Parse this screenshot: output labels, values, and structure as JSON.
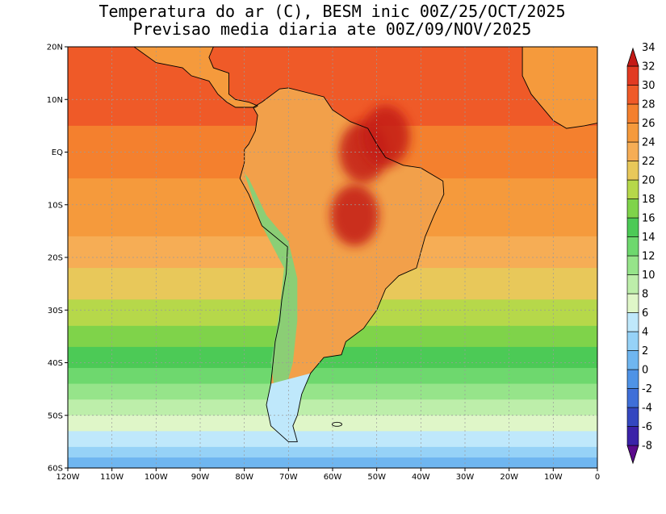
{
  "title": {
    "line1": "Temperatura do ar (C), BESM inic 00Z/25/OCT/2025",
    "line2": "Previsao media diaria ate 00Z/09/NOV/2025"
  },
  "map": {
    "projection": "lat-lon",
    "lon_range": [
      -120,
      0
    ],
    "lat_range": [
      -60,
      20
    ],
    "grid": true,
    "lat_ticks": [
      {
        "value": 20,
        "label": "20N"
      },
      {
        "value": 10,
        "label": "10N"
      },
      {
        "value": 0,
        "label": "EQ"
      },
      {
        "value": -10,
        "label": "10S"
      },
      {
        "value": -20,
        "label": "20S"
      },
      {
        "value": -30,
        "label": "30S"
      },
      {
        "value": -40,
        "label": "40S"
      },
      {
        "value": -50,
        "label": "50S"
      },
      {
        "value": -60,
        "label": "60S"
      }
    ],
    "lon_ticks": [
      {
        "value": -120,
        "label": "120W"
      },
      {
        "value": -110,
        "label": "110W"
      },
      {
        "value": -100,
        "label": "100W"
      },
      {
        "value": -90,
        "label": "90W"
      },
      {
        "value": -80,
        "label": "80W"
      },
      {
        "value": -70,
        "label": "70W"
      },
      {
        "value": -60,
        "label": "60W"
      },
      {
        "value": -50,
        "label": "50W"
      },
      {
        "value": -40,
        "label": "40W"
      },
      {
        "value": -30,
        "label": "30W"
      },
      {
        "value": -20,
        "label": "20W"
      },
      {
        "value": -10,
        "label": "10W"
      },
      {
        "value": 0,
        "label": "0"
      }
    ],
    "ocean_bands": [
      {
        "lat_top": 20,
        "lat_bottom": 5,
        "value": 28
      },
      {
        "lat_top": 5,
        "lat_bottom": -5,
        "value": 26
      },
      {
        "lat_top": -5,
        "lat_bottom": -16,
        "value": 24
      },
      {
        "lat_top": -16,
        "lat_bottom": -22,
        "value": 22
      },
      {
        "lat_top": -22,
        "lat_bottom": -28,
        "value": 20
      },
      {
        "lat_top": -28,
        "lat_bottom": -33,
        "value": 18
      },
      {
        "lat_top": -33,
        "lat_bottom": -37,
        "value": 16
      },
      {
        "lat_top": -37,
        "lat_bottom": -41,
        "value": 14
      },
      {
        "lat_top": -41,
        "lat_bottom": -44,
        "value": 12
      },
      {
        "lat_top": -44,
        "lat_bottom": -47,
        "value": 10
      },
      {
        "lat_top": -47,
        "lat_bottom": -50,
        "value": 8
      },
      {
        "lat_top": -50,
        "lat_bottom": -53,
        "value": 6
      },
      {
        "lat_top": -53,
        "lat_bottom": -56,
        "value": 4
      },
      {
        "lat_top": -56,
        "lat_bottom": -58,
        "value": 2
      },
      {
        "lat_top": -58,
        "lat_bottom": -60,
        "value": 0
      }
    ],
    "warm_spots": [
      {
        "lon": -53,
        "lat": 0,
        "value": 34
      },
      {
        "lon": -55,
        "lat": -12,
        "value": 34
      },
      {
        "lon": -48,
        "lat": 3,
        "value": 32
      }
    ]
  },
  "colorbar": {
    "colors": [
      "#5b0a8c",
      "#3a22a8",
      "#3447c0",
      "#3f6fd8",
      "#4f93e6",
      "#6fb6f0",
      "#96d2f7",
      "#bfe8fb",
      "#dff6c8",
      "#bdeeaa",
      "#96e48a",
      "#6ed86e",
      "#4cca56",
      "#7fd34a",
      "#b6d84a",
      "#e8c85a",
      "#f6ad55",
      "#f59a3c",
      "#f4802e",
      "#ef5a28",
      "#e23a22",
      "#c41a16"
    ],
    "tick_labels": [
      "-8",
      "-6",
      "-4",
      "-2",
      "0",
      "2",
      "4",
      "6",
      "8",
      "10",
      "12",
      "14",
      "16",
      "18",
      "20",
      "22",
      "24",
      "26",
      "28",
      "30",
      "32",
      "34"
    ]
  }
}
